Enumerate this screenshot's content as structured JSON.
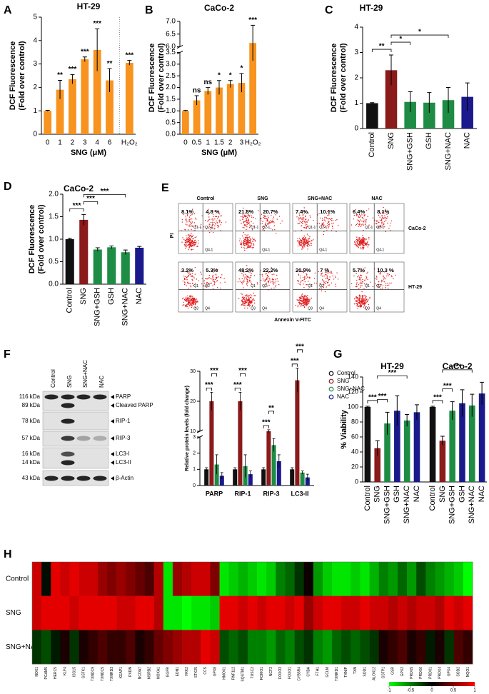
{
  "chart_data": [
    {
      "type": "bar",
      "panel": "A",
      "title": "HT-29",
      "ylabel": [
        "DCF Fluorescence",
        "(Fold over control)"
      ],
      "xlabel": "SNG (μM)",
      "categories": [
        "0",
        "1",
        "2",
        "3",
        "4",
        "6",
        "H₂O₂"
      ],
      "values": [
        1,
        1.9,
        2.35,
        3.2,
        3.6,
        2.3,
        3.05
      ],
      "errors": [
        0.02,
        0.4,
        0.2,
        0.1,
        0.9,
        0.5,
        0.1
      ],
      "color": "#f7931e",
      "significance": [
        null,
        "**",
        "***",
        "***",
        "***",
        "**",
        "***"
      ],
      "ylim": [
        0,
        5
      ],
      "yticks": [
        0,
        1,
        2,
        3,
        4,
        5
      ]
    },
    {
      "type": "bar",
      "panel": "B",
      "title": "CaCo-2",
      "ylabel": [
        "DCF Fluorescence",
        "(Fold over control)"
      ],
      "xlabel": "SNG (μM)",
      "categories": [
        "0",
        "0.5",
        "1",
        "1.5",
        "2",
        "3",
        "H₂O₂"
      ],
      "values": [
        1,
        1.45,
        1.85,
        2.0,
        2.15,
        2.2,
        6.15
      ],
      "errors": [
        0.02,
        0.2,
        0.15,
        0.3,
        0.15,
        0.4,
        0.7
      ],
      "color": "#f7931e",
      "significance": [
        null,
        "ns",
        "ns",
        "*",
        "*",
        "*",
        "***"
      ],
      "ylim": [
        0,
        7
      ],
      "ybreak": [
        3.5,
        6.0
      ],
      "yticks": [
        {
          "value": 0,
          "label": "0.0"
        },
        0.5,
        {
          "value": 1,
          "label": "1.0"
        },
        1.5,
        {
          "value": 2,
          "label": "2.0"
        },
        2.5,
        {
          "value": 3,
          "label": "3.0"
        },
        3.5,
        {
          "value": 6,
          "label": "6.0"
        },
        6.5,
        {
          "value": 7,
          "label": "7.0"
        }
      ]
    },
    {
      "type": "bar",
      "panel": "C",
      "title": "HT-29",
      "ylabel": [
        "DCF Fluorescence",
        "(Fold over control)"
      ],
      "categories": [
        "Control",
        "SNG",
        "SNG+GSH",
        "GSH",
        "SNG+NAC",
        "NAC"
      ],
      "values": [
        1,
        2.3,
        1.05,
        1.02,
        1.12,
        1.25
      ],
      "errors": [
        0.02,
        0.6,
        0.4,
        0.4,
        0.5,
        0.55
      ],
      "colors": [
        "#111111",
        "#8b1a1a",
        "#1e8c45",
        "#1e8c45",
        "#1e8c45",
        "#1a1a8c"
      ],
      "ylim": [
        0,
        4
      ],
      "yticks": [
        0,
        1,
        2,
        3,
        4
      ],
      "comparisons": [
        {
          "between": [
            "Control",
            "SNG"
          ],
          "label": "**"
        },
        {
          "between": [
            "SNG",
            "SNG+GSH"
          ],
          "label": "*"
        },
        {
          "between": [
            "SNG",
            "SNG+NAC"
          ],
          "label": "*"
        }
      ]
    },
    {
      "type": "bar",
      "panel": "D",
      "title": "CaCo-2",
      "ylabel": [
        "DCF Fluorescence",
        "(Fold over control)"
      ],
      "categories": [
        "Control",
        "SNG",
        "SNG+GSH",
        "GSH",
        "SNG+NAC",
        "NAC"
      ],
      "values": [
        1,
        1.43,
        0.77,
        0.82,
        0.71,
        0.81
      ],
      "errors": [
        0.02,
        0.12,
        0.04,
        0.03,
        0.05,
        0.03
      ],
      "colors": [
        "#111111",
        "#8b1a1a",
        "#1e8c45",
        "#1e8c45",
        "#1e8c45",
        "#1a1a8c"
      ],
      "ylim": [
        0,
        2
      ],
      "yticks": [
        {
          "value": 0,
          "label": "0.0"
        },
        0.5,
        {
          "value": 1,
          "label": "1.0"
        },
        1.5,
        {
          "value": 2,
          "label": "2.0"
        }
      ],
      "comparisons": [
        {
          "between": [
            "Control",
            "SNG"
          ],
          "label": "***"
        },
        {
          "between": [
            "SNG",
            "SNG+GSH"
          ],
          "label": "***"
        },
        {
          "between": [
            "SNG",
            "SNG+NAC"
          ],
          "label": "***"
        }
      ]
    },
    {
      "type": "flow-cytometry",
      "panel": "E",
      "columns": [
        "Control",
        "SNG",
        "SNG+NAC",
        "NAC"
      ],
      "xlabel": "Annexin V-FITC",
      "ylabel": "PI",
      "rows": [
        {
          "name": "CaCo-2",
          "quadrant_labels": [
            "Q1-1",
            "Q2-1",
            "Q4-1"
          ],
          "percentages": [
            [
              "8.1%",
              "4.8 %"
            ],
            [
              "21.8%",
              "20.7%"
            ],
            [
              "7.4%",
              "10.1%"
            ],
            [
              "6.4%",
              "8.1%"
            ]
          ]
        },
        {
          "name": "HT-29",
          "quadrant_labels": [
            "Q1",
            "Q2",
            "Q3",
            "Q4"
          ],
          "percentages": [
            [
              "3.2%",
              "5.3%"
            ],
            [
              "48.2%",
              "22.2%"
            ],
            [
              "20.9%",
              "7 %"
            ],
            [
              "5.7%",
              "10.3 %"
            ]
          ]
        }
      ]
    },
    {
      "type": "western-blot",
      "panel": "F",
      "lanes": [
        "Control",
        "SNG",
        "SNG+NAC",
        "NAC"
      ],
      "size_labels": [
        "116 kDa",
        "89 kDa",
        "78 kDa",
        "57 kDa",
        "16 kDa",
        "14 kDa",
        "43 kDa"
      ],
      "band_labels": [
        "PARP",
        "Cleaved PARP",
        "RIP-1",
        "RIP-3",
        "LC3-I",
        "LC3-II",
        "β-Actin"
      ]
    },
    {
      "type": "grouped-bar",
      "ylabel": "Relative protein levels (fold change)",
      "categories": [
        "PARP",
        "RIP-1",
        "RIP-3",
        "LC3-II"
      ],
      "series": [
        {
          "name": "Control",
          "color": "#111111",
          "values": [
            1,
            1,
            1,
            1
          ],
          "errors": [
            0.1,
            0.1,
            0.1,
            0.1
          ]
        },
        {
          "name": "SNG",
          "color": "#8b1a1a",
          "values": [
            20,
            20,
            10,
            27
          ],
          "errors": [
            3,
            3,
            0.5,
            4
          ]
        },
        {
          "name": "SNG+NAC",
          "color": "#1e8c45",
          "values": [
            1.3,
            1.2,
            2.5,
            0.8
          ],
          "errors": [
            0.6,
            0.7,
            0.4,
            0.1
          ]
        },
        {
          "name": "NAC",
          "color": "#1a1a8c",
          "values": [
            0.6,
            0.7,
            1.5,
            0.5
          ],
          "errors": [
            0.2,
            0.2,
            0.4,
            0.2
          ]
        }
      ],
      "ylim": [
        0,
        30
      ],
      "ybreak": [
        3,
        10
      ],
      "yticks": [
        0,
        1,
        2,
        3,
        10,
        20,
        30
      ],
      "comparisons": [
        {
          "category": "PARP",
          "between": [
            "Control",
            "SNG"
          ],
          "label": "***"
        },
        {
          "category": "PARP",
          "between": [
            "SNG",
            "SNG+NAC"
          ],
          "label": "***"
        },
        {
          "category": "RIP-1",
          "between": [
            "Control",
            "SNG"
          ],
          "label": "***"
        },
        {
          "category": "RIP-1",
          "between": [
            "SNG",
            "SNG+NAC"
          ],
          "label": "***"
        },
        {
          "category": "RIP-3",
          "between": [
            "Control",
            "SNG"
          ],
          "label": "***"
        },
        {
          "category": "RIP-3",
          "between": [
            "SNG",
            "SNG+NAC"
          ],
          "label": "**"
        },
        {
          "category": "LC3-II",
          "between": [
            "Control",
            "SNG"
          ],
          "label": "***"
        },
        {
          "category": "LC3-II",
          "between": [
            "SNG",
            "SNG+NAC"
          ],
          "label": "***"
        }
      ]
    },
    {
      "type": "bar",
      "panel": "G",
      "ylabel": "% Viability",
      "ylim": [
        0,
        140
      ],
      "yticks": [
        0,
        20,
        40,
        60,
        80,
        100,
        120,
        140
      ],
      "colors": [
        "#111111",
        "#8b1a1a",
        "#1e8c45",
        "#1a1a8c",
        "#1e8c45",
        "#1a1a8c"
      ],
      "groups": [
        {
          "title": "HT-29",
          "categories": [
            "Control",
            "SNG",
            "SNG+GSH",
            "GSH",
            "SNG+NAC",
            "NAC"
          ],
          "values": [
            100,
            45,
            78,
            95,
            82,
            93
          ],
          "errors": [
            1,
            10,
            15,
            20,
            8,
            10
          ],
          "comparisons": [
            {
              "between": [
                "Control",
                "SNG"
              ],
              "label": "***"
            },
            {
              "between": [
                "SNG",
                "SNG+GSH"
              ],
              "label": "***"
            },
            {
              "between": [
                "SNG",
                "SNG+NAC"
              ],
              "label": "***"
            }
          ]
        },
        {
          "title": "CaCo-2",
          "categories": [
            "Control",
            "SNG",
            "SNG+GSH",
            "GSH",
            "SNG+NAC",
            "NAC"
          ],
          "values": [
            100,
            55,
            95,
            105,
            102,
            118
          ],
          "errors": [
            1,
            6,
            12,
            18,
            15,
            15
          ],
          "comparisons": [
            {
              "between": [
                "Control",
                "SNG"
              ],
              "label": "***"
            },
            {
              "between": [
                "SNG",
                "SNG+GSH"
              ],
              "label": "***"
            },
            {
              "between": [
                "SNG",
                "SNG+NAC"
              ],
              "label": "***"
            }
          ]
        }
      ]
    },
    {
      "type": "heatmap",
      "panel": "H",
      "rows": [
        "Control",
        "SNG",
        "SNG+NAC"
      ],
      "columns": [
        "NOX1",
        "PGAM5",
        "HERC5",
        "KLF4",
        "ISG15",
        "GSTK1",
        "TXNDC9",
        "TXNDC5",
        "TXNRD3",
        "KEAP1",
        "PXDN",
        "NCOA7",
        "MSRB2",
        "NOXA1",
        "EGFR",
        "EDN1",
        "VRK2",
        "STK25",
        "CCS",
        "GPX8",
        "HMOX1",
        "RNF112",
        "SQSTM1",
        "TUSC2",
        "ROMO1",
        "NCF2",
        "FOXO3",
        "FOXO1",
        "CYB5R4",
        "CYBA",
        "FTH1",
        "GCLM",
        "TXNRD1",
        "TXNIP",
        "TXN",
        "SOD1",
        "ALOX12",
        "GSTP1",
        "GSR",
        "GPX2",
        "PRDX5",
        "PRDX6",
        "PRDX1",
        "PRDX4",
        "GPX4",
        "SOD2",
        "NQO1"
      ],
      "values": [
        [
          0.8,
          -0.05,
          0.9,
          0.8,
          0.9,
          0.8,
          0.8,
          0.6,
          0.5,
          0.6,
          0.5,
          0.4,
          0.3,
          0.7,
          -0.9,
          0.6,
          0.7,
          0.8,
          0.8,
          0.5,
          -0.9,
          -0.8,
          -0.7,
          -0.8,
          -0.9,
          -0.8,
          -0.5,
          -0.4,
          -0.2,
          0.05,
          -0.6,
          -0.8,
          -0.9,
          -0.9,
          -0.8,
          -0.9,
          -0.7,
          -0.5,
          -0.6,
          -0.4,
          -0.6,
          -0.3,
          -0.5,
          -0.6,
          -0.7,
          -0.8,
          -1
        ],
        [
          0.8,
          0.9,
          0.9,
          0.9,
          0.8,
          0.9,
          0.9,
          0.9,
          0.9,
          0.8,
          0.8,
          0.9,
          0.9,
          0.7,
          -0.9,
          -0.9,
          -1,
          -0.9,
          -0.9,
          -0.8,
          0.9,
          0.9,
          0.8,
          0.9,
          0.8,
          0.9,
          0.9,
          0.8,
          0.9,
          0.6,
          0.8,
          0.9,
          0.9,
          0.8,
          0.8,
          0.9,
          0.8,
          0.8,
          0.7,
          0.8,
          0.7,
          0.8,
          0.8,
          0.7,
          0.9,
          0.8,
          0.9
        ],
        [
          -0.2,
          -0.3,
          -0.1,
          0.1,
          -0.2,
          0.1,
          0.2,
          0.3,
          0.2,
          0.2,
          0.3,
          0.1,
          0.2,
          0.4,
          0.5,
          0.6,
          0.7,
          0.7,
          0.9,
          0.8,
          -0.3,
          -0.4,
          -0.3,
          -0.5,
          -0.5,
          -0.6,
          -0.4,
          -0.5,
          -0.3,
          -0.2,
          -0.5,
          -0.6,
          -0.4,
          -0.3,
          -0.4,
          -0.3,
          -0.2,
          0.1,
          0.2,
          0.3,
          0.1,
          0.2,
          -0.1,
          0.1,
          -0.2,
          0.3,
          0.2
        ]
      ],
      "zlim": [
        -1,
        1
      ],
      "zticks": [
        -1,
        -0.5,
        0,
        0.5,
        1
      ],
      "colors": {
        "low": "#00ff00",
        "mid": "#000000",
        "high": "#ff0000"
      }
    }
  ]
}
